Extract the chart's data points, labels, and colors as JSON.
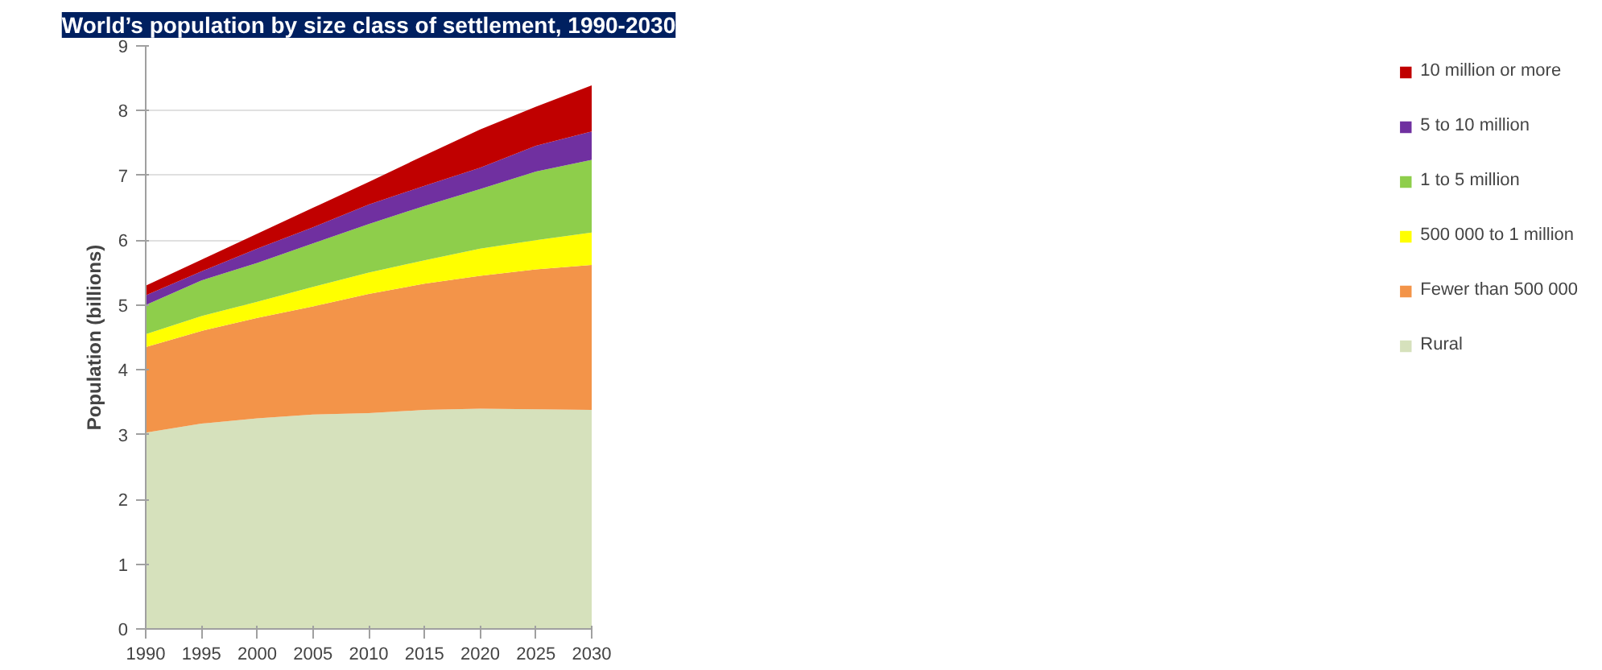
{
  "chart_data": {
    "type": "area",
    "stacked": true,
    "title": "World’s population by size class of settlement, 1990-2030",
    "ylabel": "Population (billions)",
    "x": [
      1990,
      1995,
      2000,
      2005,
      2010,
      2015,
      2020,
      2025,
      2030
    ],
    "xlim": [
      1990,
      2030
    ],
    "xticks": [
      1990,
      1995,
      2000,
      2005,
      2010,
      2015,
      2020,
      2025,
      2030
    ],
    "ylim": [
      0,
      9
    ],
    "yticks": [
      0,
      1,
      2,
      3,
      4,
      5,
      6,
      7,
      8,
      9
    ],
    "grid": "y",
    "legend": "right",
    "series": [
      {
        "name": "Rural",
        "color": "#d6e1bc",
        "values": [
          3.03,
          3.17,
          3.25,
          3.31,
          3.33,
          3.38,
          3.4,
          3.39,
          3.38
        ]
      },
      {
        "name": "Fewer than 500 000",
        "color": "#f39449",
        "values": [
          1.32,
          1.43,
          1.55,
          1.67,
          1.84,
          1.95,
          2.05,
          2.16,
          2.24
        ]
      },
      {
        "name": "500 000 to 1 million",
        "color": "#ffff00",
        "values": [
          0.2,
          0.23,
          0.25,
          0.3,
          0.33,
          0.36,
          0.42,
          0.45,
          0.5
        ]
      },
      {
        "name": "1 to 5 million",
        "color": "#8ece4b",
        "values": [
          0.45,
          0.55,
          0.6,
          0.67,
          0.75,
          0.84,
          0.92,
          1.06,
          1.12
        ]
      },
      {
        "name": "5 to 10 million",
        "color": "#7030a0",
        "values": [
          0.15,
          0.14,
          0.22,
          0.25,
          0.3,
          0.31,
          0.33,
          0.4,
          0.44
        ]
      },
      {
        "name": "10 million or more",
        "color": "#c00000",
        "values": [
          0.15,
          0.18,
          0.23,
          0.3,
          0.35,
          0.47,
          0.59,
          0.6,
          0.71
        ]
      }
    ]
  }
}
